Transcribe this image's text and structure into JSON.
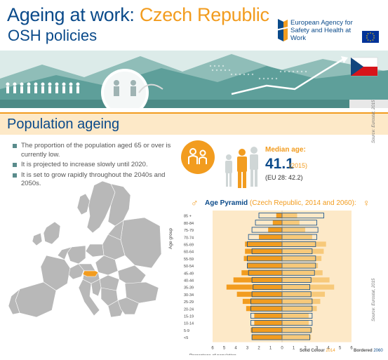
{
  "header": {
    "title_main": "Ageing at work: ",
    "title_country": "Czech Republic",
    "subtitle": "OSH policies",
    "agency_name": "European Agency for Safety and Health at Work"
  },
  "section": {
    "title": "Population ageing"
  },
  "bullets": [
    "The proportion of the population aged 65 or over is currently low.",
    "It is projected to increase slowly until 2020.",
    "It is set to grow rapidly throughout the 2040s and 2050s."
  ],
  "median": {
    "label": "Median age:",
    "value": "41.1",
    "year": "(2015)",
    "eu": "(EU 28: 42.2)",
    "source": "Source: Eurostat, 2015"
  },
  "pyramid_source": "Source: Eurostat, 2015",
  "chart_title_main": "Age Pyramid",
  "chart_title_paren": " (Czech Republic, 2014 and 2060):",
  "legend": {
    "solid": "Solid Colour",
    "solid_year": "2014",
    "bordered": "Bordered",
    "bordered_year": "2060"
  },
  "colors": {
    "orange": "#f29c1f",
    "light_orange": "#f7c97a",
    "navy": "#0a4a8a",
    "band": "#fde9c8",
    "teal": "#6aa6a6"
  },
  "chart_data": {
    "type": "bar",
    "subtype": "population-pyramid",
    "title": "Age Pyramid (Czech Republic, 2014 and 2060):",
    "ylabel": "Age group",
    "xlabel": "Percentage of population",
    "xlim": [
      -6,
      6
    ],
    "xticks": [
      "6",
      "5",
      "4",
      "3",
      "2",
      "1",
      "0",
      "1",
      "2",
      "3",
      "4",
      "5",
      "6"
    ],
    "categories": [
      "85 +",
      "80-84",
      "75-79",
      "70-74",
      "65-69",
      "60-64",
      "55-59",
      "50-54",
      "45-49",
      "40-44",
      "35-39",
      "30-34",
      "25-29",
      "20-24",
      "15-19",
      "10-14",
      "5-9",
      "<5"
    ],
    "series": [
      {
        "name": "Male 2014",
        "values": [
          0.5,
          0.8,
          1.2,
          2.0,
          3.2,
          3.2,
          3.3,
          3.0,
          3.5,
          4.2,
          4.8,
          3.9,
          3.4,
          3.1,
          2.4,
          2.4,
          2.7,
          2.6
        ]
      },
      {
        "name": "Female 2014",
        "values": [
          1.3,
          1.5,
          2.0,
          2.6,
          3.8,
          3.6,
          3.4,
          3.1,
          3.5,
          4.1,
          4.5,
          3.7,
          3.3,
          3.0,
          2.3,
          2.3,
          2.6,
          2.5
        ]
      },
      {
        "name": "Male 2060",
        "values": [
          2.0,
          2.3,
          2.6,
          2.9,
          3.0,
          2.6,
          3.0,
          3.0,
          2.9,
          2.6,
          2.5,
          2.6,
          2.7,
          2.7,
          2.7,
          2.7,
          2.6,
          2.6
        ]
      },
      {
        "name": "Female 2060",
        "values": [
          3.6,
          3.0,
          3.1,
          3.0,
          2.9,
          2.6,
          2.9,
          2.9,
          2.8,
          2.5,
          2.4,
          2.5,
          2.6,
          2.6,
          2.6,
          2.6,
          2.5,
          2.4
        ]
      }
    ]
  }
}
